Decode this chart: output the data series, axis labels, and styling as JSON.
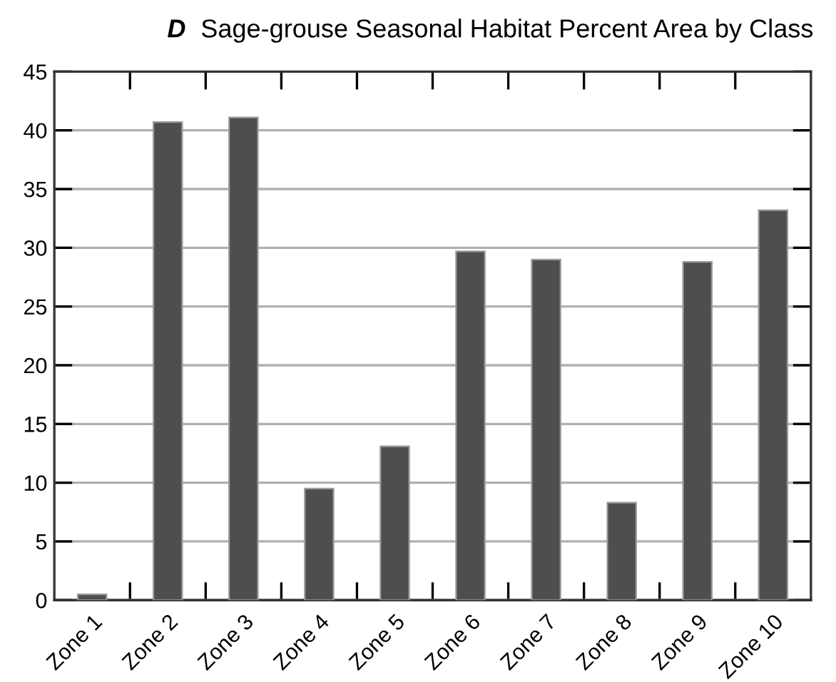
{
  "chart_data": {
    "type": "bar",
    "title": "Sage-grouse Seasonal Habitat Percent Area by Class",
    "subtitle": "D",
    "categories": [
      "Zone 1",
      "Zone 2",
      "Zone 3",
      "Zone 4",
      "Zone 5",
      "Zone 6",
      "Zone 7",
      "Zone 8",
      "Zone 9",
      "Zone 10"
    ],
    "values": [
      0.5,
      40.7,
      41.1,
      9.5,
      13.1,
      29.7,
      29.0,
      8.3,
      28.8,
      33.2
    ],
    "color": "#4d4e4e",
    "ylim": [
      0,
      45
    ],
    "yticks": [
      0,
      5,
      10,
      15,
      20,
      25,
      30,
      35,
      40,
      45
    ],
    "grid": "y"
  }
}
